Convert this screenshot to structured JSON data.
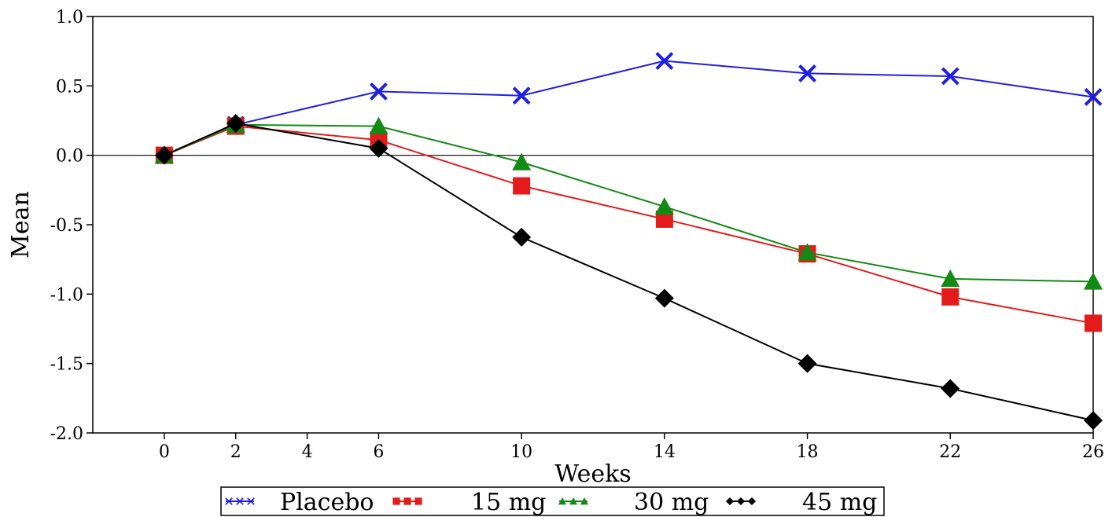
{
  "chart_data": {
    "type": "line",
    "xlabel": "Weeks",
    "ylabel": "Mean",
    "xlim": [
      -2,
      26
    ],
    "ylim": [
      -2.0,
      1.0
    ],
    "x_ticks": [
      0,
      2,
      4,
      6,
      10,
      14,
      18,
      22,
      26
    ],
    "x_tick_labels": [
      "0",
      "2",
      "4",
      "6",
      "10",
      "14",
      "18",
      "22",
      "26"
    ],
    "y_ticks": [
      1.0,
      0.5,
      0.0,
      -0.5,
      -1.0,
      -1.5,
      -2.0
    ],
    "y_tick_labels": [
      "1.0",
      "0.5",
      "0.0",
      "-0.5",
      "-1.0",
      "-1.5",
      "-2.0"
    ],
    "reference_line_y": 0,
    "grid": false,
    "legend_position": "bottom",
    "series": [
      {
        "name": "Placebo",
        "color": "#1f1fe0",
        "marker": "x",
        "x": [
          0,
          2,
          6,
          10,
          14,
          18,
          22,
          26
        ],
        "values": [
          0.0,
          0.22,
          0.46,
          0.43,
          0.68,
          0.59,
          0.57,
          0.42
        ]
      },
      {
        "name": "15 mg",
        "color": "#e31b1b",
        "marker": "square",
        "x": [
          0,
          2,
          6,
          10,
          14,
          18,
          22,
          26
        ],
        "values": [
          0.0,
          0.21,
          0.11,
          -0.22,
          -0.46,
          -0.71,
          -1.02,
          -1.21
        ]
      },
      {
        "name": "30 mg",
        "color": "#138a13",
        "marker": "triangle",
        "x": [
          0,
          2,
          6,
          10,
          14,
          18,
          22,
          26
        ],
        "values": [
          0.0,
          0.22,
          0.21,
          -0.05,
          -0.37,
          -0.7,
          -0.89,
          -0.91
        ]
      },
      {
        "name": "45 mg",
        "color": "#000000",
        "marker": "diamond",
        "x": [
          0,
          2,
          6,
          10,
          14,
          18,
          22,
          26
        ],
        "values": [
          0.0,
          0.23,
          0.05,
          -0.59,
          -1.03,
          -1.5,
          -1.68,
          -1.91
        ]
      }
    ]
  }
}
